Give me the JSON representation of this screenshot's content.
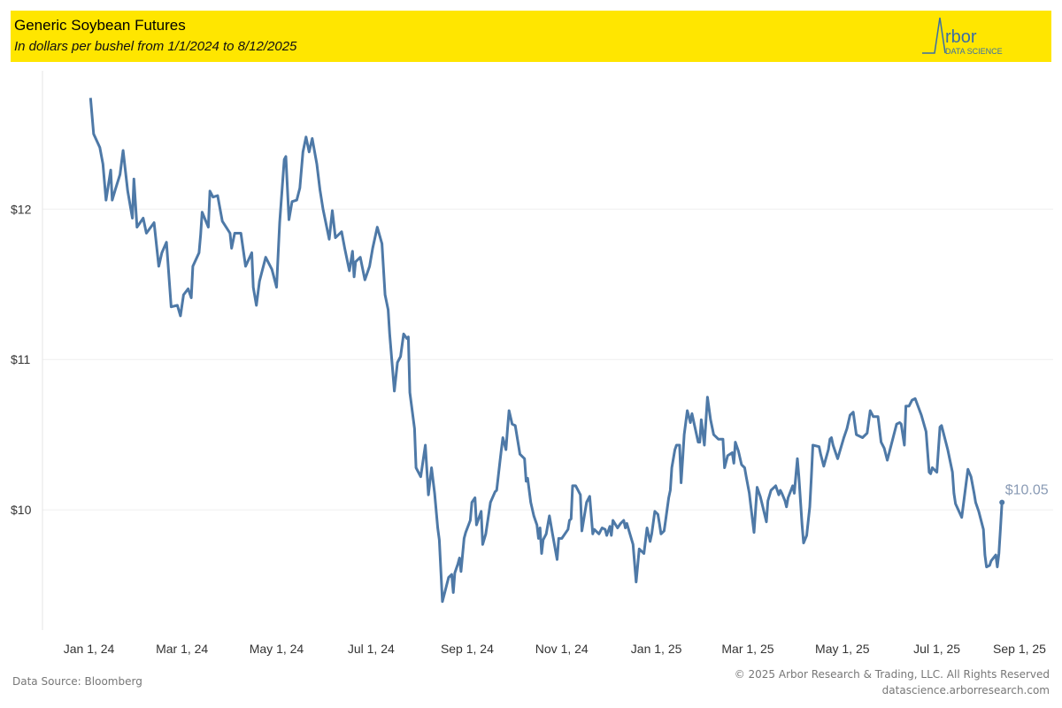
{
  "header": {
    "title": "Generic Soybean Futures",
    "subtitle": "In dollars per bushel from 1/1/2024 to 8/12/2025",
    "logo_text": "Arbor",
    "logo_subtext": "DATA SCIENCE"
  },
  "footer": {
    "source": "Data Source: Bloomberg",
    "copyright": "© 2025 Arbor Research & Trading, LLC. All Rights Reserved",
    "website": "datascience.arborresearch.com"
  },
  "colors": {
    "line": "#4e79a7",
    "header_bg": "#ffe600",
    "grid": "#efefef",
    "label": "#8a9bb5"
  },
  "chart_data": {
    "type": "line",
    "title": "Generic Soybean Futures",
    "subtitle": "In dollars per bushel from 1/1/2024 to 8/12/2025",
    "x_unit": "days since 2024-01-01",
    "xlim": [
      -30,
      622
    ],
    "ylim": [
      9.2,
      12.92
    ],
    "grid": true,
    "x_ticks": [
      {
        "day": 0,
        "label": "Jan 1, 24"
      },
      {
        "day": 60,
        "label": "Mar 1, 24"
      },
      {
        "day": 121,
        "label": "May 1, 24"
      },
      {
        "day": 182,
        "label": "Jul 1, 24"
      },
      {
        "day": 244,
        "label": "Sep 1, 24"
      },
      {
        "day": 305,
        "label": "Nov 1, 24"
      },
      {
        "day": 366,
        "label": "Jan 1, 25"
      },
      {
        "day": 425,
        "label": "Mar 1, 25"
      },
      {
        "day": 486,
        "label": "May 1, 25"
      },
      {
        "day": 547,
        "label": "Jul 1, 25"
      },
      {
        "day": 603,
        "label": "Sep 1, 25"
      }
    ],
    "y_ticks": [
      {
        "value": 12,
        "label": "$12"
      },
      {
        "value": 11,
        "label": "$11"
      },
      {
        "value": 10,
        "label": "$10"
      }
    ],
    "last_value_label": "$10.05",
    "series": [
      {
        "name": "Generic Soybean Futures",
        "points": [
          [
            1,
            12.74
          ],
          [
            3,
            12.5
          ],
          [
            7,
            12.41
          ],
          [
            9,
            12.3
          ],
          [
            11,
            12.06
          ],
          [
            14,
            12.26
          ],
          [
            15,
            12.06
          ],
          [
            17,
            12.13
          ],
          [
            20,
            12.23
          ],
          [
            22,
            12.39
          ],
          [
            25,
            12.12
          ],
          [
            28,
            11.94
          ],
          [
            29,
            12.2
          ],
          [
            31,
            11.88
          ],
          [
            35,
            11.94
          ],
          [
            37,
            11.84
          ],
          [
            42,
            11.91
          ],
          [
            45,
            11.62
          ],
          [
            47,
            11.71
          ],
          [
            50,
            11.78
          ],
          [
            53,
            11.35
          ],
          [
            57,
            11.36
          ],
          [
            59,
            11.29
          ],
          [
            61,
            11.43
          ],
          [
            64,
            11.47
          ],
          [
            66,
            11.41
          ],
          [
            67,
            11.62
          ],
          [
            71,
            11.71
          ],
          [
            72,
            11.83
          ],
          [
            73,
            11.98
          ],
          [
            77,
            11.88
          ],
          [
            78,
            12.12
          ],
          [
            80,
            12.08
          ],
          [
            83,
            12.09
          ],
          [
            86,
            11.92
          ],
          [
            91,
            11.84
          ],
          [
            92,
            11.74
          ],
          [
            94,
            11.84
          ],
          [
            98,
            11.84
          ],
          [
            101,
            11.62
          ],
          [
            105,
            11.71
          ],
          [
            106,
            11.48
          ],
          [
            108,
            11.36
          ],
          [
            110,
            11.52
          ],
          [
            114,
            11.68
          ],
          [
            118,
            11.6
          ],
          [
            121,
            11.48
          ],
          [
            123,
            11.91
          ],
          [
            126,
            12.33
          ],
          [
            127,
            12.35
          ],
          [
            129,
            11.93
          ],
          [
            131,
            12.05
          ],
          [
            134,
            12.06
          ],
          [
            136,
            12.14
          ],
          [
            138,
            12.38
          ],
          [
            140,
            12.48
          ],
          [
            142,
            12.38
          ],
          [
            144,
            12.47
          ],
          [
            147,
            12.3
          ],
          [
            149,
            12.13
          ],
          [
            151,
            12.0
          ],
          [
            155,
            11.8
          ],
          [
            157,
            11.99
          ],
          [
            159,
            11.81
          ],
          [
            163,
            11.85
          ],
          [
            165,
            11.74
          ],
          [
            168,
            11.59
          ],
          [
            170,
            11.72
          ],
          [
            171,
            11.55
          ],
          [
            172,
            11.65
          ],
          [
            175,
            11.68
          ],
          [
            178,
            11.53
          ],
          [
            181,
            11.62
          ],
          [
            183,
            11.74
          ],
          [
            186,
            11.88
          ],
          [
            189,
            11.77
          ],
          [
            191,
            11.43
          ],
          [
            193,
            11.33
          ],
          [
            194,
            11.17
          ],
          [
            197,
            10.79
          ],
          [
            199,
            10.98
          ],
          [
            201,
            11.02
          ],
          [
            203,
            11.17
          ],
          [
            205,
            11.14
          ],
          [
            206,
            11.15
          ],
          [
            207,
            10.78
          ],
          [
            210,
            10.54
          ],
          [
            211,
            10.28
          ],
          [
            214,
            10.22
          ],
          [
            217,
            10.43
          ],
          [
            219,
            10.1
          ],
          [
            221,
            10.28
          ],
          [
            223,
            10.11
          ],
          [
            225,
            9.88
          ],
          [
            226,
            9.8
          ],
          [
            228,
            9.39
          ],
          [
            232,
            9.55
          ],
          [
            234,
            9.57
          ],
          [
            235,
            9.45
          ],
          [
            236,
            9.58
          ],
          [
            238,
            9.64
          ],
          [
            239,
            9.68
          ],
          [
            240,
            9.59
          ],
          [
            242,
            9.81
          ],
          [
            243,
            9.85
          ],
          [
            246,
            9.93
          ],
          [
            247,
            10.05
          ],
          [
            249,
            10.08
          ],
          [
            250,
            9.9
          ],
          [
            253,
            9.99
          ],
          [
            254,
            9.77
          ],
          [
            256,
            9.84
          ],
          [
            259,
            10.05
          ],
          [
            262,
            10.12
          ],
          [
            263,
            10.13
          ],
          [
            265,
            10.31
          ],
          [
            266,
            10.4
          ],
          [
            267,
            10.48
          ],
          [
            269,
            10.4
          ],
          [
            270,
            10.54
          ],
          [
            271,
            10.66
          ],
          [
            273,
            10.57
          ],
          [
            275,
            10.56
          ],
          [
            278,
            10.37
          ],
          [
            281,
            10.34
          ],
          [
            282,
            10.19
          ],
          [
            283,
            10.21
          ],
          [
            285,
            10.05
          ],
          [
            287,
            9.96
          ],
          [
            289,
            9.9
          ],
          [
            290,
            9.81
          ],
          [
            291,
            9.88
          ],
          [
            292,
            9.71
          ],
          [
            293,
            9.8
          ],
          [
            295,
            9.84
          ],
          [
            297,
            9.96
          ],
          [
            299,
            9.84
          ],
          [
            302,
            9.67
          ],
          [
            303,
            9.81
          ],
          [
            305,
            9.81
          ],
          [
            309,
            9.87
          ],
          [
            310,
            9.93
          ],
          [
            311,
            9.94
          ],
          [
            312,
            10.16
          ],
          [
            314,
            10.16
          ],
          [
            317,
            10.1
          ],
          [
            318,
            9.86
          ],
          [
            321,
            10.05
          ],
          [
            323,
            10.09
          ],
          [
            325,
            9.84
          ],
          [
            326,
            9.87
          ],
          [
            329,
            9.84
          ],
          [
            331,
            9.88
          ],
          [
            333,
            9.87
          ],
          [
            334,
            9.83
          ],
          [
            336,
            9.89
          ],
          [
            337,
            9.83
          ],
          [
            338,
            9.93
          ],
          [
            341,
            9.88
          ],
          [
            343,
            9.91
          ],
          [
            345,
            9.93
          ],
          [
            346,
            9.88
          ],
          [
            347,
            9.91
          ],
          [
            349,
            9.84
          ],
          [
            351,
            9.77
          ],
          [
            353,
            9.52
          ],
          [
            355,
            9.74
          ],
          [
            358,
            9.71
          ],
          [
            360,
            9.88
          ],
          [
            362,
            9.79
          ],
          [
            363,
            9.84
          ],
          [
            365,
            9.99
          ],
          [
            367,
            9.97
          ],
          [
            368,
            9.91
          ],
          [
            369,
            9.84
          ],
          [
            371,
            9.86
          ],
          [
            372,
            9.93
          ],
          [
            374,
            10.08
          ],
          [
            375,
            10.13
          ],
          [
            376,
            10.28
          ],
          [
            378,
            10.4
          ],
          [
            379,
            10.43
          ],
          [
            381,
            10.43
          ],
          [
            382,
            10.18
          ],
          [
            383,
            10.34
          ],
          [
            384,
            10.5
          ],
          [
            386,
            10.66
          ],
          [
            388,
            10.58
          ],
          [
            389,
            10.64
          ],
          [
            393,
            10.45
          ],
          [
            394,
            10.45
          ],
          [
            395,
            10.6
          ],
          [
            397,
            10.43
          ],
          [
            399,
            10.75
          ],
          [
            401,
            10.6
          ],
          [
            403,
            10.5
          ],
          [
            406,
            10.47
          ],
          [
            409,
            10.47
          ],
          [
            410,
            10.28
          ],
          [
            412,
            10.36
          ],
          [
            415,
            10.38
          ],
          [
            416,
            10.31
          ],
          [
            417,
            10.45
          ],
          [
            419,
            10.39
          ],
          [
            421,
            10.3
          ],
          [
            423,
            10.28
          ],
          [
            424,
            10.22
          ],
          [
            426,
            10.11
          ],
          [
            427,
            10.02
          ],
          [
            429,
            9.85
          ],
          [
            431,
            10.15
          ],
          [
            433,
            10.09
          ],
          [
            434,
            10.05
          ],
          [
            437,
            9.92
          ],
          [
            438,
            10.06
          ],
          [
            440,
            10.13
          ],
          [
            443,
            10.16
          ],
          [
            445,
            10.1
          ],
          [
            446,
            10.13
          ],
          [
            447,
            10.11
          ],
          [
            449,
            10.06
          ],
          [
            450,
            10.02
          ],
          [
            451,
            10.08
          ],
          [
            454,
            10.16
          ],
          [
            455,
            10.11
          ],
          [
            457,
            10.34
          ],
          [
            458,
            10.22
          ],
          [
            460,
            9.9
          ],
          [
            461,
            9.78
          ],
          [
            463,
            9.83
          ],
          [
            465,
            10.02
          ],
          [
            466,
            10.22
          ],
          [
            467,
            10.43
          ],
          [
            471,
            10.42
          ],
          [
            472,
            10.37
          ],
          [
            474,
            10.29
          ],
          [
            477,
            10.4
          ],
          [
            478,
            10.47
          ],
          [
            479,
            10.48
          ],
          [
            480,
            10.43
          ],
          [
            483,
            10.34
          ],
          [
            487,
            10.48
          ],
          [
            489,
            10.54
          ],
          [
            491,
            10.63
          ],
          [
            493,
            10.65
          ],
          [
            495,
            10.5
          ],
          [
            499,
            10.48
          ],
          [
            502,
            10.51
          ],
          [
            504,
            10.66
          ],
          [
            506,
            10.62
          ],
          [
            509,
            10.62
          ],
          [
            511,
            10.45
          ],
          [
            513,
            10.41
          ],
          [
            515,
            10.33
          ],
          [
            517,
            10.41
          ],
          [
            521,
            10.57
          ],
          [
            523,
            10.58
          ],
          [
            524,
            10.57
          ],
          [
            526,
            10.43
          ],
          [
            527,
            10.69
          ],
          [
            529,
            10.69
          ],
          [
            531,
            10.73
          ],
          [
            533,
            10.74
          ],
          [
            537,
            10.63
          ],
          [
            540,
            10.52
          ],
          [
            542,
            10.25
          ],
          [
            543,
            10.24
          ],
          [
            544,
            10.28
          ],
          [
            547,
            10.25
          ],
          [
            549,
            10.55
          ],
          [
            550,
            10.56
          ],
          [
            554,
            10.4
          ],
          [
            557,
            10.25
          ],
          [
            558,
            10.11
          ],
          [
            559,
            10.04
          ],
          [
            563,
            9.95
          ],
          [
            565,
            10.11
          ],
          [
            567,
            10.27
          ],
          [
            569,
            10.22
          ],
          [
            571,
            10.11
          ],
          [
            572,
            10.05
          ],
          [
            574,
            9.99
          ],
          [
            577,
            9.87
          ],
          [
            578,
            9.7
          ],
          [
            579,
            9.62
          ],
          [
            581,
            9.63
          ],
          [
            582,
            9.66
          ],
          [
            585,
            9.7
          ],
          [
            586,
            9.62
          ],
          [
            587,
            9.71
          ],
          [
            588,
            9.87
          ],
          [
            589,
            10.05
          ]
        ]
      }
    ]
  }
}
